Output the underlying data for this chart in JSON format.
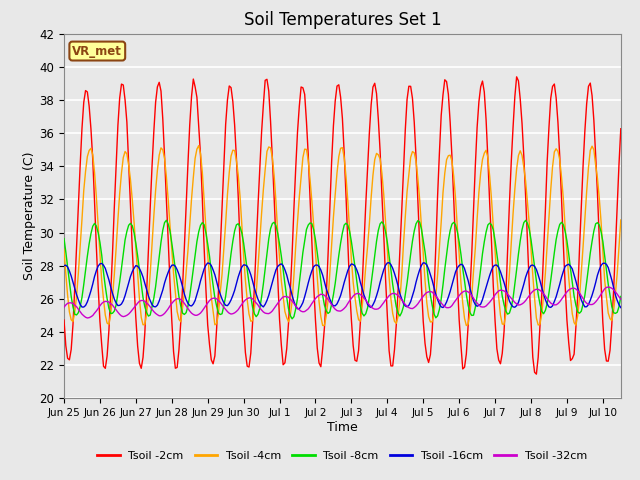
{
  "title": "Soil Temperatures Set 1",
  "xlabel": "Time",
  "ylabel": "Soil Temperature (C)",
  "ylim": [
    20,
    42
  ],
  "yticks": [
    20,
    22,
    24,
    26,
    28,
    30,
    32,
    34,
    36,
    38,
    40,
    42
  ],
  "colors": {
    "Tsoil -2cm": "#ff0000",
    "Tsoil -4cm": "#ffa500",
    "Tsoil -8cm": "#00dd00",
    "Tsoil -16cm": "#0000dd",
    "Tsoil -32cm": "#cc00cc"
  },
  "legend_labels": [
    "Tsoil -2cm",
    "Tsoil -4cm",
    "Tsoil -8cm",
    "Tsoil -16cm",
    "Tsoil -32cm"
  ],
  "x_tick_labels": [
    "Jun 25",
    "Jun 26",
    "Jun 27",
    "Jun 28",
    "Jun 29",
    "Jun 30",
    "Jul 1",
    "Jul 2",
    "Jul 3",
    "Jul 4",
    "Jul 5",
    "Jul 6",
    "Jul 7",
    "Jul 8",
    "Jul 9",
    "Jul 10"
  ],
  "annotation_text": "VR_met",
  "annotation_color": "#8B4513",
  "annotation_bg": "#ffff99",
  "annotation_border": "#8B4513",
  "plot_bg": "#e8e8e8",
  "grid_color": "#ffffff",
  "n_days": 15.5,
  "dt": 0.05
}
